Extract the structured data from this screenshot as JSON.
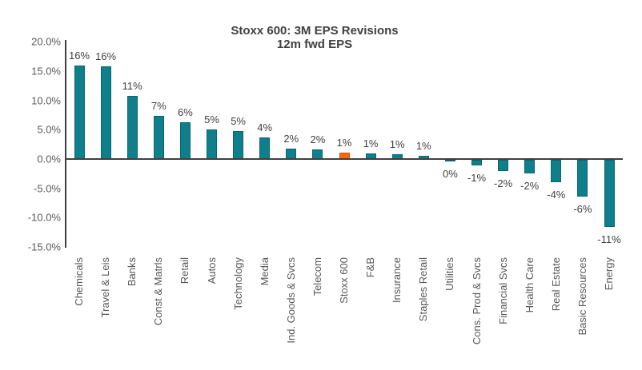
{
  "chart_data": {
    "type": "bar",
    "title": "Stoxx 600: 3M EPS Revisions",
    "subtitle": "12m fwd EPS",
    "categories": [
      "Chemicals",
      "Travel & Leis",
      "Banks",
      "Const & Matrls",
      "Retail",
      "Autos",
      "Technology",
      "Media",
      "Ind. Goods & Svcs",
      "Telecom",
      "Stoxx 600",
      "F&B",
      "Insurance",
      "Staples Retail",
      "Utilities",
      "Cons. Prod & Svcs",
      "Financial Svcs",
      "Health Care",
      "Real Estate",
      "Basic Resources",
      "Energy"
    ],
    "values": [
      15.9,
      15.8,
      10.7,
      7.4,
      6.2,
      5.0,
      4.8,
      3.7,
      1.8,
      1.6,
      1.1,
      0.9,
      0.8,
      0.6,
      -0.3,
      -0.9,
      -1.9,
      -2.3,
      -3.8,
      -6.2,
      -11.5
    ],
    "data_labels": [
      "16%",
      "16%",
      "11%",
      "7%",
      "6%",
      "5%",
      "5%",
      "4%",
      "2%",
      "2%",
      "1%",
      "1%",
      "1%",
      "1%",
      "0%",
      "-1%",
      "-2%",
      "-2%",
      "-4%",
      "-6%",
      "-11%"
    ],
    "highlight_category": "Stoxx 600",
    "highlight_index": 10,
    "y_ticks": [
      {
        "label": "20.0%",
        "value": 20
      },
      {
        "label": "15.0%",
        "value": 15
      },
      {
        "label": "10.0%",
        "value": 10
      },
      {
        "label": "5.0%",
        "value": 5
      },
      {
        "label": "0.0%",
        "value": 0
      },
      {
        "label": "-5.0%",
        "value": -5
      },
      {
        "label": "-10.0%",
        "value": -10
      },
      {
        "label": "-15.0%",
        "value": -15
      }
    ],
    "ylim": [
      -15,
      20
    ],
    "grid": false,
    "legend": false
  },
  "colors": {
    "bar_fill": "#0E7F8B",
    "bar_border": "#0A6570",
    "highlight_fill": "#FF6600",
    "highlight_border": "#DB5200",
    "axis": "#404040",
    "tick_text": "#595959",
    "data_label_text": "#404040"
  }
}
